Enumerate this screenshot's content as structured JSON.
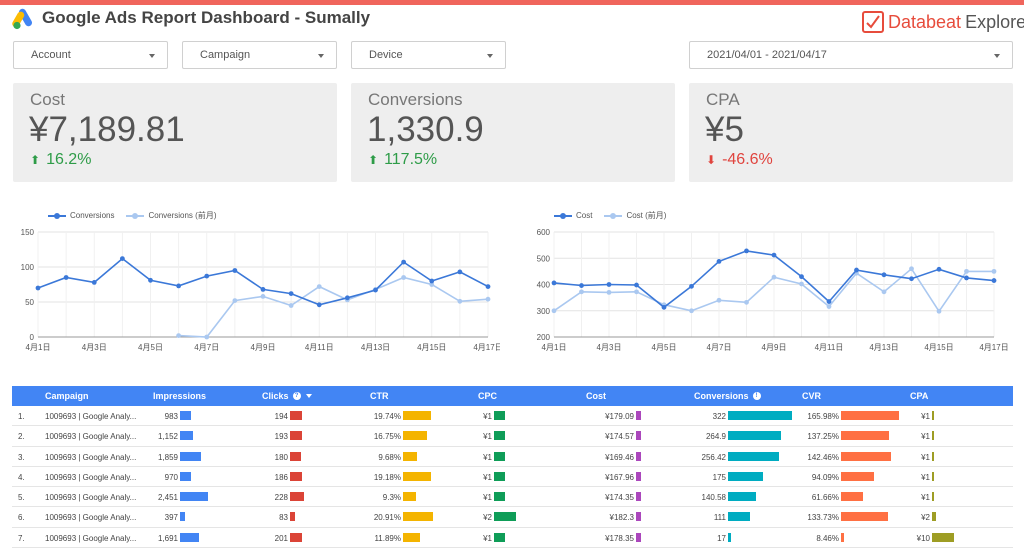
{
  "header": {
    "title": "Google Ads Report Dashboard - Sumally",
    "logo_icon": "google-ads-logo-icon",
    "brand_primary": "Databeat",
    "brand_secondary": "Explore",
    "accent_color": "#f0655c"
  },
  "filters": {
    "account": "Account",
    "campaign": "Campaign",
    "device": "Device",
    "date_range": "2021/04/01 - 2021/04/17"
  },
  "kpis": [
    {
      "label": "Cost",
      "value": "¥7,189.81",
      "delta": "16.2%",
      "direction": "up"
    },
    {
      "label": "Conversions",
      "value": "1,330.9",
      "delta": "117.5%",
      "direction": "up"
    },
    {
      "label": "CPA",
      "value": "¥5",
      "delta": "-46.6%",
      "direction": "down"
    }
  ],
  "chart_data": [
    {
      "type": "line",
      "x": [
        "4月1日",
        "4月2日",
        "4月3日",
        "4月4日",
        "4月5日",
        "4月6日",
        "4月7日",
        "4月8日",
        "4月9日",
        "4月10日",
        "4月11日",
        "4月12日",
        "4月13日",
        "4月14日",
        "4月15日",
        "4月16日",
        "4月17日"
      ],
      "x_tick_labels": [
        "4月1日",
        "4月3日",
        "4月5日",
        "4月7日",
        "4月9日",
        "4月11日",
        "4月13日",
        "4月15日",
        "4月17日"
      ],
      "series": [
        {
          "name": "Conversions",
          "color": "#3b78d8",
          "values": [
            70,
            85,
            78,
            112,
            81,
            73,
            87,
            95,
            68,
            62,
            46,
            56,
            67,
            107,
            80,
            93,
            72
          ]
        },
        {
          "name": "Conversions (前月)",
          "color": "#aac8f0",
          "values": [
            null,
            null,
            null,
            null,
            null,
            2,
            0,
            52,
            58,
            45,
            72,
            53,
            68,
            85,
            75,
            51,
            54
          ]
        }
      ],
      "ylim": [
        0,
        150
      ],
      "y_ticks": [
        0,
        50,
        100,
        150
      ],
      "legend_position": "top-left",
      "grid": true
    },
    {
      "type": "line",
      "x": [
        "4月1日",
        "4月2日",
        "4月3日",
        "4月4日",
        "4月5日",
        "4月6日",
        "4月7日",
        "4月8日",
        "4月9日",
        "4月10日",
        "4月11日",
        "4月12日",
        "4月13日",
        "4月14日",
        "4月15日",
        "4月16日",
        "4月17日"
      ],
      "x_tick_labels": [
        "4月1日",
        "4月3日",
        "4月5日",
        "4月7日",
        "4月9日",
        "4月11日",
        "4月13日",
        "4月15日",
        "4月17日"
      ],
      "series": [
        {
          "name": "Cost",
          "color": "#3b78d8",
          "values": [
            406,
            396,
            400,
            398,
            313,
            393,
            488,
            528,
            512,
            430,
            335,
            455,
            437,
            422,
            458,
            425,
            415
          ]
        },
        {
          "name": "Cost (前月)",
          "color": "#aac8f0",
          "values": [
            300,
            372,
            370,
            372,
            323,
            300,
            340,
            332,
            428,
            402,
            316,
            443,
            372,
            460,
            298,
            450,
            450
          ]
        }
      ],
      "ylim": [
        200,
        600
      ],
      "y_ticks": [
        200,
        300,
        400,
        500,
        600
      ],
      "legend_position": "top-left",
      "grid": true
    }
  ],
  "table": {
    "headers": {
      "campaign": "Campaign",
      "impressions": "Impressions",
      "clicks": "Clicks",
      "ctr": "CTR",
      "cpc": "CPC",
      "cost": "Cost",
      "conversions": "Conversions",
      "cvr": "CVR",
      "cpa": "CPA"
    },
    "header_color": "#4285f4",
    "bar_colors": {
      "impressions": "#4285f4",
      "clicks": "#db4437",
      "ctr": "#f4b400",
      "cpc": "#0f9d58",
      "cost": "#ab47bc",
      "conversions": "#00acc1",
      "cvr": "#ff7043",
      "cpa": "#9e9d24"
    },
    "rows": [
      {
        "idx": "1.",
        "campaign": "1009693 | Google Analy...",
        "impressions": "983",
        "clicks": "194",
        "ctr": "19.74%",
        "cpc": "¥1",
        "cost": "¥179.09",
        "conversions": "322",
        "cvr": "165.98%",
        "cpa": "¥1"
      },
      {
        "idx": "2.",
        "campaign": "1009693 | Google Analy...",
        "impressions": "1,152",
        "clicks": "193",
        "ctr": "16.75%",
        "cpc": "¥1",
        "cost": "¥174.57",
        "conversions": "264.9",
        "cvr": "137.25%",
        "cpa": "¥1"
      },
      {
        "idx": "3.",
        "campaign": "1009693 | Google Analy...",
        "impressions": "1,859",
        "clicks": "180",
        "ctr": "9.68%",
        "cpc": "¥1",
        "cost": "¥169.46",
        "conversions": "256.42",
        "cvr": "142.46%",
        "cpa": "¥1"
      },
      {
        "idx": "4.",
        "campaign": "1009693 | Google Analy...",
        "impressions": "970",
        "clicks": "186",
        "ctr": "19.18%",
        "cpc": "¥1",
        "cost": "¥167.96",
        "conversions": "175",
        "cvr": "94.09%",
        "cpa": "¥1"
      },
      {
        "idx": "5.",
        "campaign": "1009693 | Google Analy...",
        "impressions": "2,451",
        "clicks": "228",
        "ctr": "9.3%",
        "cpc": "¥1",
        "cost": "¥174.35",
        "conversions": "140.58",
        "cvr": "61.66%",
        "cpa": "¥1"
      },
      {
        "idx": "6.",
        "campaign": "1009693 | Google Analy...",
        "impressions": "397",
        "clicks": "83",
        "ctr": "20.91%",
        "cpc": "¥2",
        "cost": "¥182.3",
        "conversions": "111",
        "cvr": "133.73%",
        "cpa": "¥2"
      },
      {
        "idx": "7.",
        "campaign": "1009693 | Google Analy...",
        "impressions": "1,691",
        "clicks": "201",
        "ctr": "11.89%",
        "cpc": "¥1",
        "cost": "¥178.35",
        "conversions": "17",
        "cvr": "8.46%",
        "cpa": "¥10"
      }
    ],
    "bar_fractions": {
      "impressions": [
        0.4,
        0.47,
        0.76,
        0.4,
        1.0,
        0.16,
        0.69
      ],
      "clicks": [
        0.85,
        0.85,
        0.79,
        0.82,
        1.0,
        0.36,
        0.88
      ],
      "ctr": [
        0.94,
        0.8,
        0.46,
        0.92,
        0.44,
        1.0,
        0.57
      ],
      "cpc": [
        0.5,
        0.5,
        0.5,
        0.5,
        0.5,
        1.0,
        0.5
      ],
      "cost": [
        0.2,
        0.2,
        0.2,
        0.2,
        0.2,
        0.2,
        0.2
      ],
      "conversions": [
        1.0,
        0.82,
        0.8,
        0.54,
        0.44,
        0.34,
        0.05
      ],
      "cvr": [
        1.0,
        0.83,
        0.86,
        0.57,
        0.37,
        0.81,
        0.05
      ],
      "cpa": [
        0.1,
        0.1,
        0.1,
        0.1,
        0.1,
        0.2,
        1.0
      ]
    }
  }
}
